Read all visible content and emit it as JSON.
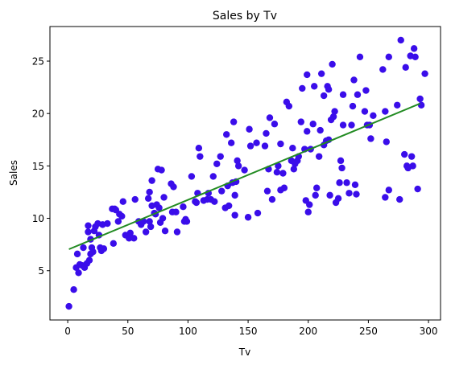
{
  "chart_data": {
    "type": "scatter",
    "title": "Sales by Tv",
    "xlabel": "Tv",
    "ylabel": "Sales",
    "xlim": [
      -14.8,
      310
    ],
    "ylim": [
      0.3,
      28.3
    ],
    "xticks": [
      0,
      50,
      100,
      150,
      200,
      250,
      300
    ],
    "yticks": [
      5,
      10,
      15,
      20,
      25
    ],
    "grid": false,
    "colors": {
      "points": "#3a0dea",
      "line": "#228b22"
    },
    "series": [
      {
        "type": "scatter",
        "points": [
          [
            1,
            1.6
          ],
          [
            5,
            3.2
          ],
          [
            7,
            5.3
          ],
          [
            8,
            6.6
          ],
          [
            9,
            4.8
          ],
          [
            10,
            5.6
          ],
          [
            12,
            5.5
          ],
          [
            13,
            7.2
          ],
          [
            14,
            5.3
          ],
          [
            16,
            5.7
          ],
          [
            17,
            8.7
          ],
          [
            17,
            9.3
          ],
          [
            18,
            6.0
          ],
          [
            19,
            6.6
          ],
          [
            19,
            8.0
          ],
          [
            20,
            7.2
          ],
          [
            21,
            6.8
          ],
          [
            22,
            8.8
          ],
          [
            23,
            9.2
          ],
          [
            25,
            9.5
          ],
          [
            26,
            8.4
          ],
          [
            27,
            7.2
          ],
          [
            28,
            6.9
          ],
          [
            29,
            9.4
          ],
          [
            30,
            7.1
          ],
          [
            33,
            9.5
          ],
          [
            37,
            10.9
          ],
          [
            38,
            7.6
          ],
          [
            39,
            10.9
          ],
          [
            40,
            10.8
          ],
          [
            42,
            9.7
          ],
          [
            43,
            10.4
          ],
          [
            45,
            10.2
          ],
          [
            46,
            11.6
          ],
          [
            48,
            8.4
          ],
          [
            51,
            8.1
          ],
          [
            52,
            8.6
          ],
          [
            55,
            8.1
          ],
          [
            56,
            11.8
          ],
          [
            59,
            9.7
          ],
          [
            61,
            9.4
          ],
          [
            63,
            9.7
          ],
          [
            65,
            8.7
          ],
          [
            67,
            11.9
          ],
          [
            68,
            9.7
          ],
          [
            68,
            12.5
          ],
          [
            69,
            9.2
          ],
          [
            70,
            11.2
          ],
          [
            70,
            13.6
          ],
          [
            72,
            10.5
          ],
          [
            73,
            10.4
          ],
          [
            74,
            11.3
          ],
          [
            75,
            14.7
          ],
          [
            76,
            11.0
          ],
          [
            77,
            9.6
          ],
          [
            78,
            14.6
          ],
          [
            79,
            10.0
          ],
          [
            80,
            12.0
          ],
          [
            81,
            8.8
          ],
          [
            86,
            13.3
          ],
          [
            87,
            10.6
          ],
          [
            88,
            13.0
          ],
          [
            90,
            10.6
          ],
          [
            91,
            8.7
          ],
          [
            96,
            11.1
          ],
          [
            97,
            9.7
          ],
          [
            98,
            9.9
          ],
          [
            99,
            9.7
          ],
          [
            103,
            14.0
          ],
          [
            106,
            11.6
          ],
          [
            107,
            11.5
          ],
          [
            108,
            12.4
          ],
          [
            109,
            16.7
          ],
          [
            110,
            15.9
          ],
          [
            113,
            11.7
          ],
          [
            116,
            11.8
          ],
          [
            117,
            12.4
          ],
          [
            119,
            11.8
          ],
          [
            121,
            14.0
          ],
          [
            122,
            11.6
          ],
          [
            124,
            15.2
          ],
          [
            127,
            15.9
          ],
          [
            128,
            12.6
          ],
          [
            131,
            11.0
          ],
          [
            132,
            18.0
          ],
          [
            133,
            13.1
          ],
          [
            134,
            11.2
          ],
          [
            136,
            17.2
          ],
          [
            137,
            13.4
          ],
          [
            138,
            19.2
          ],
          [
            139,
            12.2
          ],
          [
            139,
            10.3
          ],
          [
            140,
            13.5
          ],
          [
            141,
            15.5
          ],
          [
            142,
            15.0
          ],
          [
            147,
            14.6
          ],
          [
            150,
            10.1
          ],
          [
            151,
            18.5
          ],
          [
            152,
            16.9
          ],
          [
            157,
            17.2
          ],
          [
            158,
            10.5
          ],
          [
            164,
            16.9
          ],
          [
            165,
            18.1
          ],
          [
            166,
            12.6
          ],
          [
            167,
            14.7
          ],
          [
            168,
            19.6
          ],
          [
            170,
            11.8
          ],
          [
            172,
            19.0
          ],
          [
            174,
            14.4
          ],
          [
            175,
            15.0
          ],
          [
            177,
            12.7
          ],
          [
            177,
            17.1
          ],
          [
            179,
            14.3
          ],
          [
            180,
            12.9
          ],
          [
            182,
            21.1
          ],
          [
            184,
            20.7
          ],
          [
            186,
            15.5
          ],
          [
            187,
            16.7
          ],
          [
            188,
            14.7
          ],
          [
            189,
            15.2
          ],
          [
            191,
            15.5
          ],
          [
            192,
            15.9
          ],
          [
            194,
            19.2
          ],
          [
            195,
            22.4
          ],
          [
            197,
            16.6
          ],
          [
            198,
            11.7
          ],
          [
            199,
            18.3
          ],
          [
            199,
            23.7
          ],
          [
            200,
            10.6
          ],
          [
            201,
            11.3
          ],
          [
            202,
            16.6
          ],
          [
            204,
            19.0
          ],
          [
            205,
            22.6
          ],
          [
            206,
            12.2
          ],
          [
            207,
            12.9
          ],
          [
            209,
            15.9
          ],
          [
            210,
            18.4
          ],
          [
            211,
            23.8
          ],
          [
            213,
            17.0
          ],
          [
            213,
            21.7
          ],
          [
            215,
            17.4
          ],
          [
            216,
            22.6
          ],
          [
            217,
            22.3
          ],
          [
            217,
            17.5
          ],
          [
            218,
            12.2
          ],
          [
            219,
            19.4
          ],
          [
            220,
            24.7
          ],
          [
            221,
            19.7
          ],
          [
            222,
            20.2
          ],
          [
            223,
            11.5
          ],
          [
            225,
            11.9
          ],
          [
            226,
            13.4
          ],
          [
            227,
            15.5
          ],
          [
            228,
            14.8
          ],
          [
            229,
            18.9
          ],
          [
            229,
            21.8
          ],
          [
            232,
            13.4
          ],
          [
            234,
            12.4
          ],
          [
            236,
            18.9
          ],
          [
            237,
            20.7
          ],
          [
            238,
            23.2
          ],
          [
            239,
            13.2
          ],
          [
            240,
            12.3
          ],
          [
            241,
            21.8
          ],
          [
            243,
            25.4
          ],
          [
            247,
            20.2
          ],
          [
            248,
            22.2
          ],
          [
            249,
            18.9
          ],
          [
            251,
            18.9
          ],
          [
            252,
            17.6
          ],
          [
            254,
            19.8
          ],
          [
            262,
            24.2
          ],
          [
            264,
            20.2
          ],
          [
            264,
            12.0
          ],
          [
            265,
            17.3
          ],
          [
            267,
            12.7
          ],
          [
            267,
            25.4
          ],
          [
            274,
            20.8
          ],
          [
            276,
            11.8
          ],
          [
            277,
            27.0
          ],
          [
            280,
            16.1
          ],
          [
            281,
            24.4
          ],
          [
            282,
            15.0
          ],
          [
            283,
            14.8
          ],
          [
            285,
            25.5
          ],
          [
            286,
            15.9
          ],
          [
            287,
            15.0
          ],
          [
            288,
            26.2
          ],
          [
            289,
            25.4
          ],
          [
            291,
            12.8
          ],
          [
            293,
            21.4
          ],
          [
            294,
            20.8
          ],
          [
            297,
            23.8
          ]
        ]
      },
      {
        "type": "line",
        "points": [
          [
            1,
            7.05
          ],
          [
            293,
            20.95
          ]
        ]
      }
    ]
  }
}
